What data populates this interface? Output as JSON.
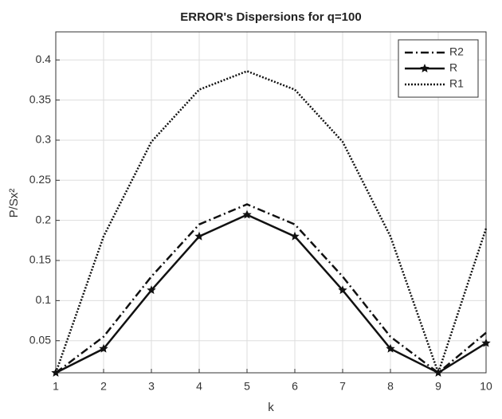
{
  "chart_data": {
    "type": "line",
    "title": "ERROR's Dispersions for q=100",
    "xlabel": "k",
    "ylabel": "P/Sx²",
    "x": [
      1,
      2,
      3,
      4,
      5,
      6,
      7,
      8,
      9,
      10
    ],
    "xlim": [
      1,
      10
    ],
    "xticks": [
      1,
      2,
      3,
      4,
      5,
      6,
      7,
      8,
      9,
      10
    ],
    "ylim": [
      0.01,
      0.435
    ],
    "yticks": [
      0.05,
      0.1,
      0.15,
      0.2,
      0.25,
      0.3,
      0.35,
      0.4
    ],
    "grid": true,
    "legend": "upper-right",
    "series": [
      {
        "name": "R2",
        "color": "#111111",
        "dash": "dashdot",
        "marker": "none",
        "values": [
          0.01,
          0.055,
          0.13,
          0.195,
          0.22,
          0.195,
          0.13,
          0.055,
          0.01,
          0.06
        ]
      },
      {
        "name": "R",
        "color": "#111111",
        "dash": "solid",
        "marker": "star",
        "values": [
          0.01,
          0.04,
          0.113,
          0.18,
          0.207,
          0.18,
          0.113,
          0.04,
          0.01,
          0.047
        ]
      },
      {
        "name": "R1",
        "color": "#111111",
        "dash": "dotted",
        "marker": "none",
        "values": [
          0.01,
          0.18,
          0.298,
          0.363,
          0.386,
          0.363,
          0.298,
          0.18,
          0.01,
          0.19
        ]
      }
    ]
  }
}
